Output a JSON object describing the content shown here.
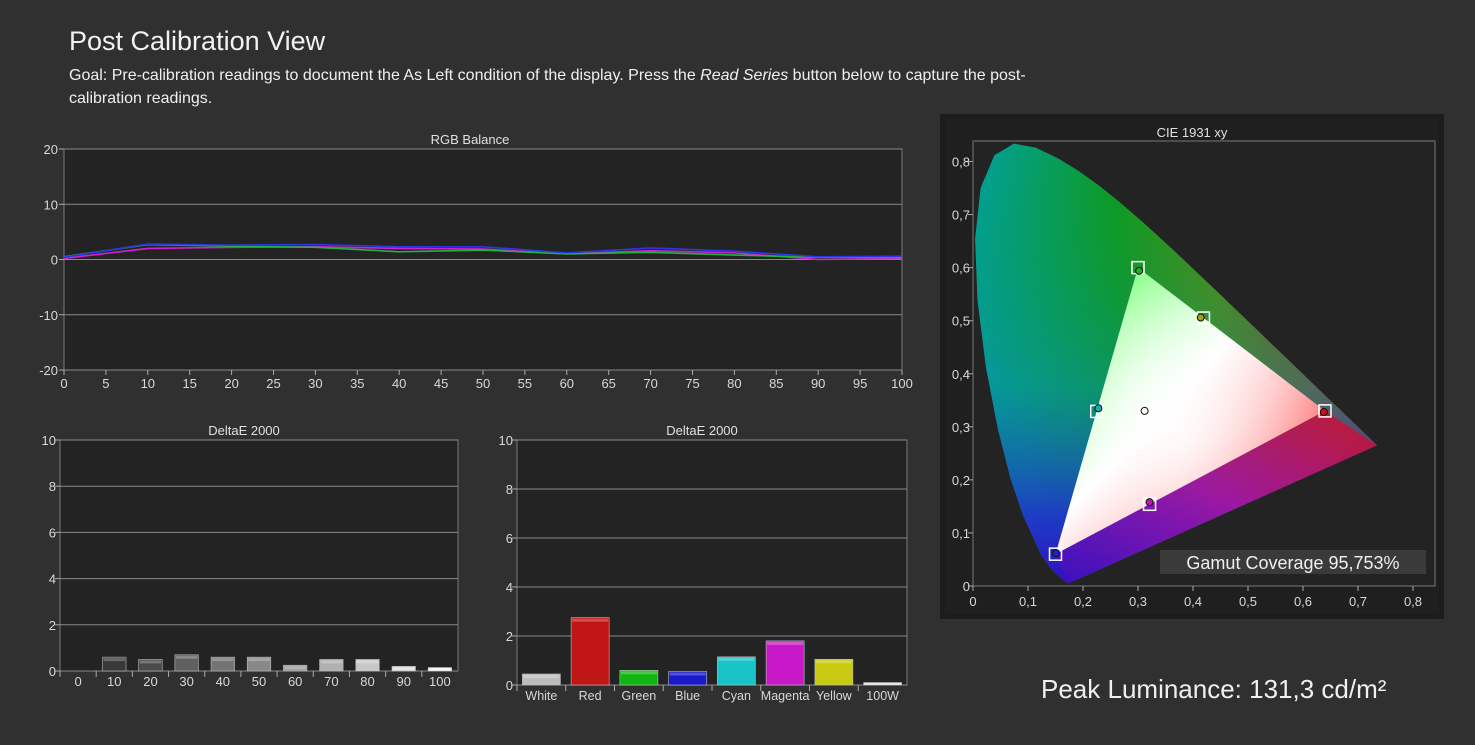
{
  "page": {
    "title": "Post Calibration View",
    "goal_prefix": "Goal: Pre-calibration readings to document the As Left condition of the display. Press the ",
    "goal_button": "Read Series",
    "goal_suffix": " button below to capture the post-calibration readings.",
    "peak_luminance": "Peak Luminance: 131,3 cd/m²"
  },
  "chart_data": [
    {
      "id": "rgb-balance",
      "type": "line",
      "title": "RGB Balance",
      "x": [
        0,
        10,
        20,
        30,
        40,
        50,
        60,
        70,
        80,
        90,
        100
      ],
      "xticks": [
        "0",
        "5",
        "10",
        "15",
        "20",
        "25",
        "30",
        "35",
        "40",
        "45",
        "50",
        "55",
        "60",
        "65",
        "70",
        "75",
        "80",
        "85",
        "90",
        "95",
        "100"
      ],
      "xlim": [
        0,
        100
      ],
      "yticks": [
        "20",
        "10",
        "0",
        "-10",
        "-20"
      ],
      "ylim": [
        -20,
        20
      ],
      "grid": true,
      "series": [
        {
          "color": "#d21fd2",
          "values": [
            0.2,
            2.0,
            2.2,
            2.3,
            2.0,
            1.9,
            1.0,
            1.6,
            1.2,
            0.0,
            0.2
          ]
        },
        {
          "color": "#1fb33a",
          "values": [
            0.5,
            2.7,
            2.4,
            2.2,
            1.4,
            1.7,
            1.0,
            1.3,
            0.8,
            0.4,
            0.4
          ]
        },
        {
          "color": "#2a37e6",
          "values": [
            0.4,
            2.8,
            2.6,
            2.7,
            2.3,
            2.3,
            1.2,
            2.1,
            1.5,
            0.5,
            0.6
          ]
        }
      ]
    },
    {
      "id": "deltae-gray",
      "type": "bar",
      "title": "DeltaE 2000",
      "categories": [
        "0",
        "10",
        "20",
        "30",
        "40",
        "50",
        "60",
        "70",
        "80",
        "90",
        "100"
      ],
      "values": [
        0.0,
        0.6,
        0.5,
        0.7,
        0.6,
        0.6,
        0.25,
        0.5,
        0.5,
        0.2,
        0.15
      ],
      "colors": [
        "#202020",
        "#383838",
        "#4a4a4a",
        "#606060",
        "#747474",
        "#888888",
        "#9c9c9c",
        "#b0b0b0",
        "#c8c8c8",
        "#dcdcdc",
        "#f2f2f2"
      ],
      "yticks": [
        "10",
        "8",
        "6",
        "4",
        "2",
        "0"
      ],
      "ylim": [
        0,
        10
      ],
      "grid": true
    },
    {
      "id": "deltae-color",
      "type": "bar",
      "title": "DeltaE 2000",
      "categories": [
        "White",
        "Red",
        "Green",
        "Blue",
        "Cyan",
        "Magenta",
        "Yellow",
        "100W"
      ],
      "values": [
        0.45,
        2.75,
        0.6,
        0.55,
        1.15,
        1.8,
        1.05,
        0.1
      ],
      "colors": [
        "#bdbdbd",
        "#c01515",
        "#12b612",
        "#1a1acc",
        "#18c4c8",
        "#c818c8",
        "#c9c912",
        "#e8e8e8"
      ],
      "yticks": [
        "10",
        "8",
        "6",
        "4",
        "2",
        "0"
      ],
      "ylim": [
        0,
        10
      ],
      "grid": true
    },
    {
      "id": "cie",
      "type": "scatter",
      "title": "CIE 1931 xy",
      "xlim": [
        0,
        0.8
      ],
      "ylim": [
        0,
        0.85
      ],
      "xticks": [
        "0",
        "0,1",
        "0,2",
        "0,3",
        "0,4",
        "0,5",
        "0,6",
        "0,7",
        "0,8"
      ],
      "yticks": [
        "0,8",
        "0,7",
        "0,6",
        "0,5",
        "0,4",
        "0,3",
        "0,2",
        "0,1",
        "0"
      ],
      "targets": [
        {
          "name": "Red",
          "x": 0.64,
          "y": 0.33
        },
        {
          "name": "Green",
          "x": 0.3,
          "y": 0.6
        },
        {
          "name": "Blue",
          "x": 0.15,
          "y": 0.06
        },
        {
          "name": "Cyan",
          "x": 0.225,
          "y": 0.329
        },
        {
          "name": "Magenta",
          "x": 0.321,
          "y": 0.154
        },
        {
          "name": "Yellow",
          "x": 0.419,
          "y": 0.505
        },
        {
          "name": "White",
          "x": 0.3127,
          "y": 0.329
        }
      ],
      "measured": [
        {
          "name": "Red",
          "x": 0.638,
          "y": 0.328,
          "color": "#d01010"
        },
        {
          "name": "Green",
          "x": 0.302,
          "y": 0.594,
          "color": "#20b020"
        },
        {
          "name": "Blue",
          "x": 0.151,
          "y": 0.062,
          "color": "#2020d0"
        },
        {
          "name": "Cyan",
          "x": 0.228,
          "y": 0.335,
          "color": "#10b0b8"
        },
        {
          "name": "Magenta",
          "x": 0.321,
          "y": 0.158,
          "color": "#b818b8"
        },
        {
          "name": "Yellow",
          "x": 0.414,
          "y": 0.506,
          "color": "#a0a010"
        },
        {
          "name": "White",
          "x": 0.312,
          "y": 0.33,
          "color": "#ffffff"
        }
      ],
      "annotation": "Gamut Coverage 95,753%"
    }
  ]
}
